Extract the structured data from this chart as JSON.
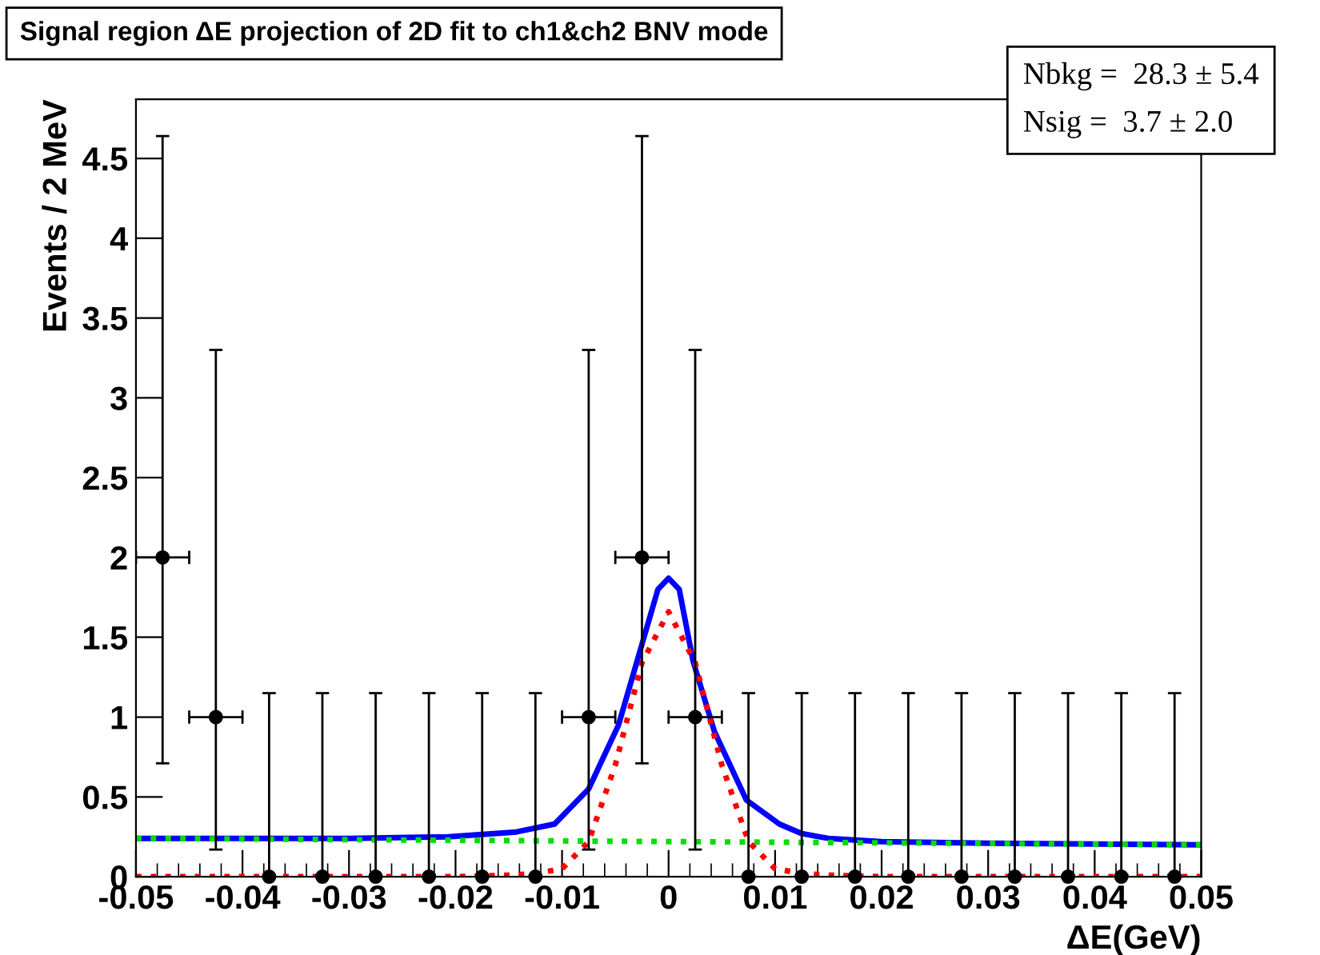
{
  "chart_data": {
    "type": "scatter",
    "title": "Signal region ΔE projection of 2D fit to ch1&ch2 BNV mode",
    "xlabel": "ΔE(GeV)",
    "ylabel": "Events / 2 MeV",
    "annotations": [
      "Nbkg =  28.3 ± 5.4",
      "Nsig =  3.7 ± 2.0"
    ],
    "xlim": [
      -0.05,
      0.05
    ],
    "ylim": [
      0,
      4.87
    ],
    "xticks": [
      -0.05,
      -0.04,
      -0.03,
      -0.02,
      -0.01,
      0,
      0.01,
      0.02,
      0.03,
      0.04,
      0.05
    ],
    "yticks": [
      0,
      0.5,
      1,
      1.5,
      2,
      2.5,
      3,
      3.5,
      4,
      4.5
    ],
    "grid": false,
    "series": [
      {
        "type": "line",
        "color": "#00dd00",
        "line_style": "dotted",
        "marker": "none",
        "x": [
          -0.05,
          0,
          0.05
        ],
        "values": [
          0.24,
          0.22,
          0.2
        ]
      },
      {
        "type": "line",
        "color": "#ff0000",
        "line_style": "dotted",
        "marker": "none",
        "x": [
          -0.05,
          -0.02,
          -0.015,
          -0.0125,
          -0.01,
          -0.0075,
          -0.005,
          -0.0025,
          0,
          0.0025,
          0.005,
          0.0075,
          0.01,
          0.0125,
          0.015,
          0.02,
          0.05
        ],
        "values": [
          0,
          0,
          0.01,
          0.02,
          0.05,
          0.22,
          0.7,
          1.34,
          1.66,
          1.34,
          0.7,
          0.22,
          0.05,
          0.02,
          0.01,
          0,
          0
        ]
      },
      {
        "type": "line",
        "color": "#0000ff",
        "line_style": "solid",
        "marker": "none",
        "x": [
          -0.05,
          -0.03,
          -0.0207,
          -0.0143,
          -0.0107,
          -0.0075,
          -0.0047,
          -0.0027,
          -0.001,
          0,
          0.001,
          0.0023,
          0.0043,
          0.0073,
          0.0104,
          0.0125,
          0.015,
          0.02,
          0.03,
          0.05
        ],
        "values": [
          0.24,
          0.24,
          0.25,
          0.28,
          0.33,
          0.55,
          0.95,
          1.41,
          1.8,
          1.87,
          1.8,
          1.35,
          0.91,
          0.48,
          0.33,
          0.27,
          0.24,
          0.22,
          0.21,
          0.2
        ]
      },
      {
        "color": "#000000",
        "marker": "circle",
        "x": [
          -0.0475,
          -0.0425,
          -0.0375,
          -0.0325,
          -0.0275,
          -0.0225,
          -0.0175,
          -0.0125,
          -0.0075,
          -0.0025,
          0.0025,
          0.0075,
          0.0125,
          0.0175,
          0.0225,
          0.0275,
          0.0325,
          0.0375,
          0.0425,
          0.0475
        ],
        "values": [
          2,
          1,
          0,
          0,
          0,
          0,
          0,
          0,
          1,
          2,
          1,
          0,
          0,
          0,
          0,
          0,
          0,
          0,
          0,
          0
        ],
        "errors": [
          [
            0.71,
            4.64
          ],
          [
            0.17,
            3.3
          ],
          [
            0,
            1.15
          ],
          [
            0,
            1.15
          ],
          [
            0,
            1.15
          ],
          [
            0,
            1.15
          ],
          [
            0,
            1.15
          ],
          [
            0,
            1.15
          ],
          [
            0.17,
            3.3
          ],
          [
            0.71,
            4.64
          ],
          [
            0.17,
            3.3
          ],
          [
            0,
            1.15
          ],
          [
            0,
            1.15
          ],
          [
            0,
            1.15
          ],
          [
            0,
            1.15
          ],
          [
            0,
            1.15
          ],
          [
            0,
            1.15
          ],
          [
            0,
            1.15
          ],
          [
            0,
            1.15
          ],
          [
            0,
            1.15
          ]
        ],
        "xerrors": [
          0.0025,
          0.0025,
          null,
          null,
          null,
          null,
          null,
          null,
          0.0025,
          0.0025,
          0.0025,
          null,
          null,
          null,
          null,
          null,
          null,
          null,
          null,
          null
        ]
      }
    ]
  }
}
